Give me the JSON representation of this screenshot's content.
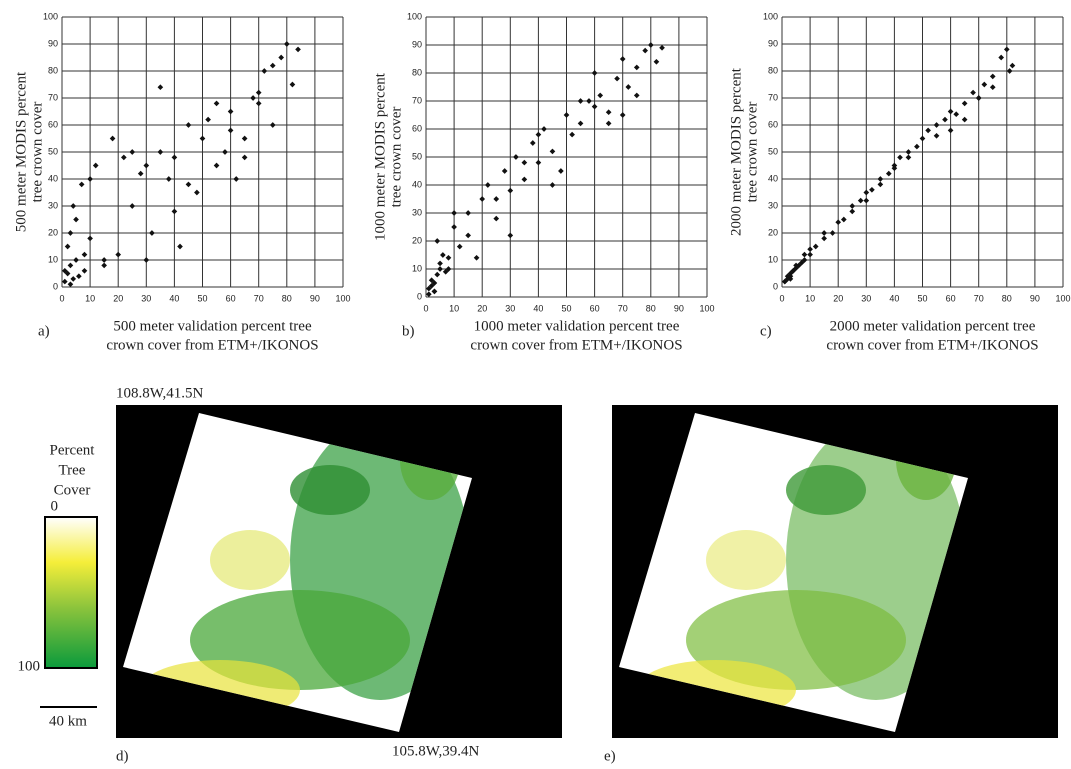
{
  "chart_data": [
    {
      "type": "scatter",
      "panel_label": "a)",
      "ylabel": [
        "500 meter MODIS percent",
        "tree crown cover"
      ],
      "xlabel": [
        "500 meter validation percent tree",
        "crown cover from ETM+/IKONOS"
      ],
      "x": [
        1,
        2,
        3,
        4,
        5,
        2,
        6,
        8,
        3,
        1,
        4,
        7,
        10,
        12,
        15,
        18,
        20,
        22,
        25,
        28,
        30,
        32,
        35,
        38,
        40,
        42,
        45,
        48,
        50,
        52,
        55,
        58,
        60,
        62,
        65,
        68,
        70,
        72,
        75,
        78,
        80,
        82,
        84,
        5,
        10,
        15,
        25,
        35,
        45,
        55,
        65,
        75,
        3,
        8,
        30,
        40,
        60,
        70
      ],
      "values": [
        2,
        5,
        8,
        3,
        10,
        15,
        4,
        12,
        20,
        6,
        30,
        38,
        18,
        45,
        10,
        55,
        12,
        48,
        30,
        42,
        45,
        20,
        50,
        40,
        48,
        15,
        60,
        35,
        55,
        62,
        45,
        50,
        65,
        40,
        55,
        70,
        68,
        80,
        60,
        85,
        90,
        75,
        88,
        25,
        40,
        8,
        50,
        74,
        38,
        68,
        48,
        82,
        1,
        6,
        10,
        28,
        58,
        72
      ],
      "color": "#111111",
      "xlim": [
        0,
        100
      ],
      "ylim": [
        0,
        100
      ],
      "xticks": [
        0,
        10,
        20,
        30,
        40,
        50,
        60,
        70,
        80,
        90,
        100
      ],
      "yticks": [
        0,
        10,
        20,
        30,
        40,
        50,
        60,
        70,
        80,
        90,
        100
      ],
      "grid": true
    },
    {
      "type": "scatter",
      "panel_label": "b)",
      "ylabel": [
        "1000 meter MODIS percent",
        "tree crown cover"
      ],
      "xlabel": [
        "1000 meter validation percent tree",
        "crown cover from ETM+/IKONOS"
      ],
      "x": [
        1,
        2,
        3,
        4,
        5,
        2,
        6,
        8,
        3,
        1,
        4,
        7,
        10,
        12,
        15,
        18,
        20,
        22,
        25,
        28,
        30,
        32,
        35,
        38,
        40,
        42,
        45,
        48,
        50,
        52,
        55,
        58,
        60,
        62,
        65,
        68,
        70,
        72,
        75,
        78,
        80,
        82,
        84,
        5,
        10,
        15,
        25,
        35,
        45,
        55,
        65,
        75,
        3,
        8,
        30,
        40,
        60,
        70
      ],
      "values": [
        3,
        6,
        2,
        8,
        12,
        4,
        15,
        10,
        5,
        1,
        20,
        9,
        25,
        18,
        30,
        14,
        35,
        40,
        28,
        45,
        38,
        50,
        42,
        55,
        48,
        60,
        52,
        45,
        65,
        58,
        62,
        70,
        68,
        72,
        66,
        78,
        85,
        75,
        82,
        88,
        90,
        84,
        89,
        10,
        30,
        22,
        35,
        48,
        40,
        70,
        62,
        72,
        2,
        14,
        22,
        58,
        80,
        65
      ],
      "color": "#111111",
      "xlim": [
        0,
        100
      ],
      "ylim": [
        0,
        100
      ],
      "xticks": [
        0,
        10,
        20,
        30,
        40,
        50,
        60,
        70,
        80,
        90,
        100
      ],
      "yticks": [
        0,
        10,
        20,
        30,
        40,
        50,
        60,
        70,
        80,
        90,
        100
      ],
      "grid": true
    },
    {
      "type": "scatter",
      "panel_label": "c)",
      "ylabel": [
        "2000 meter MODIS percent",
        "tree crown cover"
      ],
      "xlabel": [
        "2000 meter validation percent tree",
        "crown cover from ETM+/IKONOS"
      ],
      "x": [
        1,
        2,
        3,
        4,
        5,
        2,
        6,
        8,
        3,
        1,
        4,
        7,
        10,
        12,
        15,
        18,
        20,
        22,
        25,
        28,
        30,
        32,
        35,
        38,
        40,
        42,
        45,
        48,
        50,
        52,
        55,
        58,
        60,
        62,
        65,
        68,
        70,
        72,
        75,
        78,
        80,
        82,
        81,
        5,
        10,
        15,
        25,
        35,
        45,
        55,
        65,
        75,
        3,
        8,
        30,
        40,
        60,
        70
      ],
      "values": [
        2,
        4,
        3,
        6,
        7,
        3,
        8,
        10,
        5,
        2,
        6,
        9,
        12,
        15,
        18,
        20,
        24,
        25,
        28,
        32,
        35,
        36,
        40,
        42,
        45,
        48,
        50,
        52,
        55,
        58,
        60,
        62,
        65,
        64,
        68,
        72,
        70,
        75,
        78,
        85,
        88,
        82,
        80,
        8,
        14,
        20,
        30,
        38,
        48,
        56,
        62,
        74,
        4,
        12,
        32,
        44,
        58,
        70
      ],
      "color": "#111111",
      "xlim": [
        0,
        100
      ],
      "ylim": [
        0,
        100
      ],
      "xticks": [
        0,
        10,
        20,
        30,
        40,
        50,
        60,
        70,
        80,
        90,
        100
      ],
      "yticks": [
        0,
        10,
        20,
        30,
        40,
        50,
        60,
        70,
        80,
        90,
        100
      ],
      "grid": true
    }
  ],
  "maps": {
    "legend_title": [
      "Percent",
      "Tree",
      "Cover"
    ],
    "legend_min": "0",
    "legend_max": "100",
    "scale": "40 km",
    "corner_nw": "108.8W,41.5N",
    "corner_se": "105.8W,39.4N",
    "panels": [
      "d)",
      "e)"
    ]
  }
}
